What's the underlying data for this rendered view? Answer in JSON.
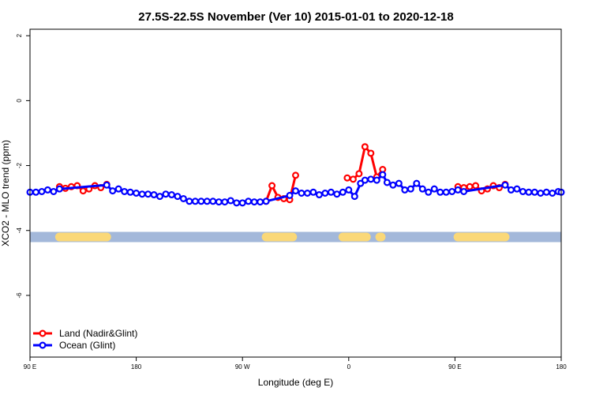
{
  "chart_data": {
    "type": "line",
    "title": "27.5S-22.5S November (Ver 10)   2015-01-01 to 2020-12-18",
    "xlabel": "Longitude (deg E)",
    "ylabel": "XCO2 - MLO trend (ppm)",
    "xlim": [
      90,
      450
    ],
    "ylim": [
      -7.9,
      2.2
    ],
    "x_ticks": [
      {
        "value": 90,
        "label": "90 E"
      },
      {
        "value": 162,
        "label": "180"
      },
      {
        "value": 234,
        "label": "90 W"
      },
      {
        "value": 306,
        "label": "0"
      },
      {
        "value": 378,
        "label": "90 E"
      },
      {
        "value": 450,
        "label": "180"
      }
    ],
    "y_ticks": [
      {
        "value": 2,
        "label": "2"
      },
      {
        "value": 0,
        "label": "0"
      },
      {
        "value": -2,
        "label": "-2"
      },
      {
        "value": -4,
        "label": "-4"
      },
      {
        "value": -6,
        "label": "-6"
      }
    ],
    "legend_position": "bottom-left",
    "surface_band": {
      "y": -4.2,
      "ocean_color": "#a3b8da",
      "land_color": "#fad878",
      "land_segments": [
        [
          110,
          142
        ],
        [
          250,
          268
        ],
        [
          302,
          318
        ],
        [
          327,
          328
        ],
        [
          380,
          412
        ]
      ]
    },
    "series": [
      {
        "name": "Land (Nadir&Glint)",
        "color": "#ff0000",
        "segments": [
          [
            [
              110,
              -2.65
            ],
            [
              114,
              -2.7
            ],
            [
              118,
              -2.65
            ],
            [
              122,
              -2.62
            ],
            [
              126,
              -2.78
            ],
            [
              130,
              -2.72
            ],
            [
              134,
              -2.62
            ],
            [
              138,
              -2.68
            ],
            [
              142,
              -2.58
            ]
          ],
          [
            [
              250,
              -3.1
            ],
            [
              254,
              -2.62
            ],
            [
              258,
              -2.98
            ],
            [
              262,
              -3.02
            ],
            [
              266,
              -3.05
            ],
            [
              270,
              -2.3
            ]
          ],
          [
            [
              305,
              -2.38
            ],
            [
              309,
              -2.42
            ],
            [
              313,
              -2.25
            ],
            [
              317,
              -1.42
            ],
            [
              321,
              -1.62
            ],
            [
              325,
              -2.35
            ],
            [
              329,
              -2.12
            ]
          ],
          [
            [
              380,
              -2.65
            ],
            [
              384,
              -2.68
            ],
            [
              388,
              -2.65
            ],
            [
              392,
              -2.62
            ],
            [
              396,
              -2.78
            ],
            [
              400,
              -2.72
            ],
            [
              404,
              -2.62
            ],
            [
              408,
              -2.68
            ],
            [
              412,
              -2.58
            ]
          ]
        ]
      },
      {
        "name": "Ocean (Glint)",
        "color": "#0000ff",
        "segments": [
          [
            [
              90,
              -2.82
            ],
            [
              94,
              -2.82
            ],
            [
              98,
              -2.8
            ],
            [
              102,
              -2.75
            ],
            [
              106,
              -2.8
            ],
            [
              110,
              -2.72
            ],
            [
              142,
              -2.6
            ],
            [
              146,
              -2.78
            ],
            [
              150,
              -2.72
            ],
            [
              154,
              -2.8
            ],
            [
              158,
              -2.82
            ],
            [
              162,
              -2.85
            ],
            [
              166,
              -2.88
            ],
            [
              170,
              -2.88
            ],
            [
              174,
              -2.9
            ],
            [
              178,
              -2.95
            ],
            [
              182,
              -2.88
            ],
            [
              186,
              -2.9
            ],
            [
              190,
              -2.95
            ],
            [
              194,
              -3.02
            ],
            [
              198,
              -3.1
            ],
            [
              202,
              -3.1
            ],
            [
              206,
              -3.1
            ],
            [
              210,
              -3.1
            ],
            [
              214,
              -3.1
            ],
            [
              218,
              -3.12
            ],
            [
              222,
              -3.12
            ],
            [
              226,
              -3.08
            ],
            [
              230,
              -3.15
            ],
            [
              234,
              -3.15
            ],
            [
              238,
              -3.1
            ],
            [
              242,
              -3.12
            ],
            [
              246,
              -3.12
            ],
            [
              250,
              -3.1
            ],
            [
              266,
              -2.92
            ],
            [
              270,
              -2.78
            ],
            [
              274,
              -2.85
            ],
            [
              278,
              -2.85
            ],
            [
              282,
              -2.82
            ],
            [
              286,
              -2.9
            ],
            [
              290,
              -2.85
            ],
            [
              294,
              -2.82
            ],
            [
              298,
              -2.88
            ],
            [
              302,
              -2.82
            ],
            [
              306,
              -2.75
            ],
            [
              310,
              -2.95
            ],
            [
              314,
              -2.55
            ],
            [
              317,
              -2.45
            ],
            [
              321,
              -2.42
            ],
            [
              325,
              -2.45
            ],
            [
              329,
              -2.28
            ],
            [
              332,
              -2.52
            ],
            [
              336,
              -2.6
            ],
            [
              340,
              -2.55
            ],
            [
              344,
              -2.75
            ],
            [
              348,
              -2.72
            ],
            [
              352,
              -2.55
            ],
            [
              356,
              -2.72
            ],
            [
              360,
              -2.82
            ],
            [
              364,
              -2.72
            ],
            [
              368,
              -2.82
            ],
            [
              372,
              -2.82
            ],
            [
              376,
              -2.8
            ],
            [
              380,
              -2.75
            ],
            [
              384,
              -2.8
            ],
            [
              412,
              -2.6
            ],
            [
              416,
              -2.75
            ],
            [
              420,
              -2.72
            ],
            [
              424,
              -2.8
            ],
            [
              428,
              -2.82
            ],
            [
              432,
              -2.82
            ],
            [
              436,
              -2.85
            ],
            [
              440,
              -2.82
            ],
            [
              444,
              -2.85
            ],
            [
              448,
              -2.8
            ],
            [
              450,
              -2.82
            ]
          ]
        ]
      }
    ]
  }
}
